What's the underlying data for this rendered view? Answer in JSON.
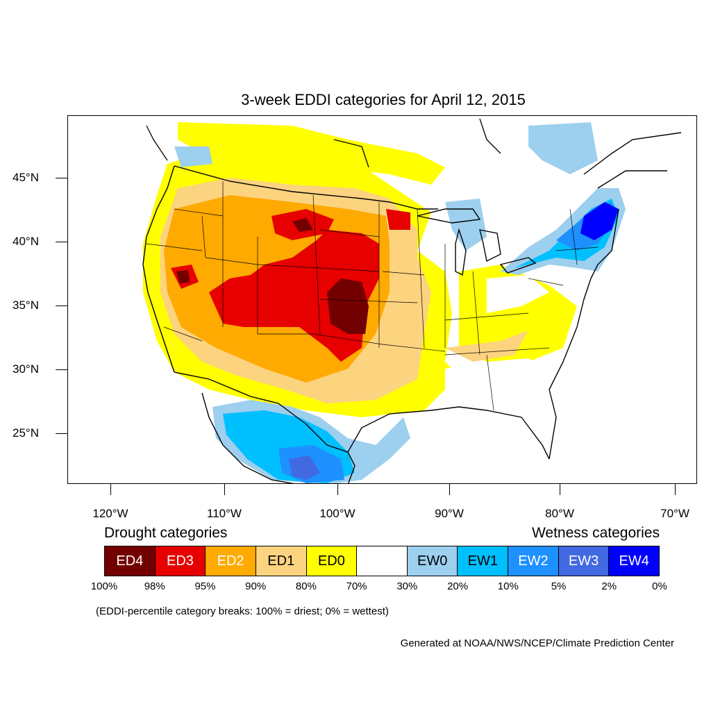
{
  "title": "3-week EDDI categories for April 12, 2015",
  "lat_labels": [
    "45°N",
    "40°N",
    "35°N",
    "30°N",
    "25°N"
  ],
  "lon_labels": [
    "120°W",
    "110°W",
    "100°W",
    "90°W",
    "80°W",
    "70°W"
  ],
  "legend": {
    "drought_heading": "Drought categories",
    "wetness_heading": "Wetness categories",
    "boxes": [
      {
        "label": "ED4",
        "color": "#730000",
        "text_color": "#ffffff"
      },
      {
        "label": "ED3",
        "color": "#e60000",
        "text_color": "#ffffff"
      },
      {
        "label": "ED2",
        "color": "#ffaa00",
        "text_color": "#ffffff"
      },
      {
        "label": "ED1",
        "color": "#fcd37f",
        "text_color": "#000000"
      },
      {
        "label": "ED0",
        "color": "#ffff00",
        "text_color": "#000000"
      },
      {
        "label": "",
        "color": "#ffffff",
        "text_color": "#000000"
      },
      {
        "label": "EW0",
        "color": "#9dcfee",
        "text_color": "#000000"
      },
      {
        "label": "EW1",
        "color": "#00bfff",
        "text_color": "#000000"
      },
      {
        "label": "EW2",
        "color": "#1e90ff",
        "text_color": "#ffffff"
      },
      {
        "label": "EW3",
        "color": "#4169e1",
        "text_color": "#ffffff"
      },
      {
        "label": "EW4",
        "color": "#0000ff",
        "text_color": "#ffffff"
      }
    ],
    "percent_breaks": [
      "100%",
      "98%",
      "95%",
      "90%",
      "80%",
      "70%",
      "30%",
      "20%",
      "10%",
      "5%",
      "2%",
      "0%"
    ]
  },
  "note": "(EDDI-percentile category breaks: 100% = driest; 0% = wettest)",
  "credit": "Generated at NOAA/NWS/NCEP/Climate Prediction Center"
}
